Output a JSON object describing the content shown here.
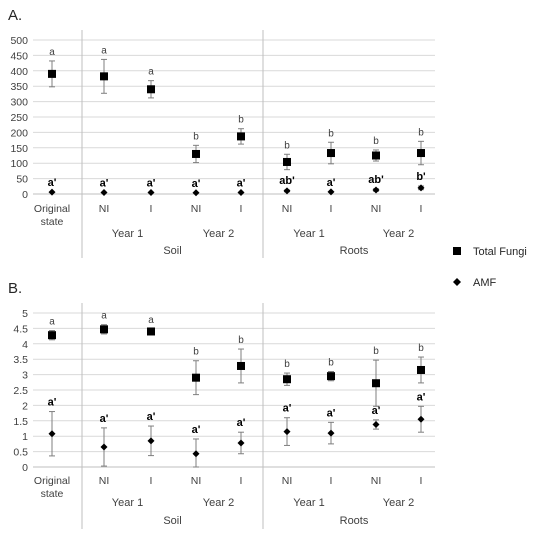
{
  "legend": {
    "total_fungi": "Total Fungi",
    "amf": "AMF"
  },
  "chart_data": [
    {
      "panel": "A.",
      "type": "scatter",
      "categories": [
        "Original state",
        "NI",
        "I",
        "NI",
        "I",
        "NI",
        "I",
        "NI",
        "I"
      ],
      "groups": [
        {
          "label": "Year 1",
          "from": 1,
          "to": 2
        },
        {
          "label": "Year 2",
          "from": 3,
          "to": 4
        },
        {
          "label": "Year 1",
          "from": 5,
          "to": 6
        },
        {
          "label": "Year 2",
          "from": 7,
          "to": 8
        }
      ],
      "supergroups": [
        {
          "label": "Soil",
          "from": 1,
          "to": 4
        },
        {
          "label": "Roots",
          "from": 5,
          "to": 8
        }
      ],
      "yticks": [
        "0",
        "50",
        "100",
        "150",
        "200",
        "250",
        "300",
        "350",
        "400",
        "450",
        "500"
      ],
      "ylim": [
        0,
        500
      ],
      "grid": true,
      "series": [
        {
          "name": "Total Fungi",
          "marker": "square",
          "values": [
            390,
            382,
            340,
            130,
            187,
            104,
            133,
            125,
            133
          ],
          "err": [
            42,
            55,
            28,
            28,
            25,
            25,
            35,
            18,
            38
          ],
          "labels": [
            "a",
            "a",
            "a",
            "b",
            "b",
            "b",
            "b",
            "b",
            "b"
          ]
        },
        {
          "name": "AMF",
          "marker": "diamond",
          "values": [
            6,
            5,
            5,
            4,
            5,
            10,
            7,
            13,
            20
          ],
          "err": [
            0,
            0,
            0,
            0,
            0,
            3,
            0,
            4,
            6
          ],
          "labels": [
            "a'",
            "a'",
            "a'",
            "a'",
            "a'",
            "ab'",
            "a'",
            "ab'",
            "b'"
          ]
        }
      ]
    },
    {
      "panel": "B.",
      "type": "scatter",
      "categories": [
        "Original state",
        "NI",
        "I",
        "NI",
        "I",
        "NI",
        "I",
        "NI",
        "I"
      ],
      "groups": [
        {
          "label": "Year 1",
          "from": 1,
          "to": 2
        },
        {
          "label": "Year 2",
          "from": 3,
          "to": 4
        },
        {
          "label": "Year 1",
          "from": 5,
          "to": 6
        },
        {
          "label": "Year 2",
          "from": 7,
          "to": 8
        }
      ],
      "supergroups": [
        {
          "label": "Soil",
          "from": 1,
          "to": 4
        },
        {
          "label": "Roots",
          "from": 5,
          "to": 8
        }
      ],
      "yticks": [
        "0",
        "0.5",
        "1",
        "1.5",
        "2",
        "2.5",
        "3",
        "3.5",
        "4",
        "4.5",
        "5"
      ],
      "ylim": [
        0,
        5
      ],
      "grid": true,
      "series": [
        {
          "name": "Total Fungi",
          "marker": "square",
          "values": [
            4.28,
            4.47,
            4.4,
            2.9,
            3.28,
            2.85,
            2.95,
            2.72,
            3.15
          ],
          "err": [
            0.15,
            0.15,
            0.08,
            0.55,
            0.55,
            0.2,
            0.15,
            0.75,
            0.42
          ],
          "labels": [
            "a",
            "a",
            "a",
            "b",
            "b",
            "b",
            "b",
            "b",
            "b"
          ]
        },
        {
          "name": "AMF",
          "marker": "diamond",
          "values": [
            1.08,
            0.65,
            0.85,
            0.43,
            0.78,
            1.15,
            1.1,
            1.38,
            1.55
          ],
          "err": [
            0.72,
            0.62,
            0.48,
            0.48,
            0.35,
            0.45,
            0.35,
            0.15,
            0.42
          ],
          "labels": [
            "a'",
            "a'",
            "a'",
            "a'",
            "a'",
            "a'",
            "a'",
            "a'",
            "a'"
          ]
        }
      ]
    }
  ]
}
